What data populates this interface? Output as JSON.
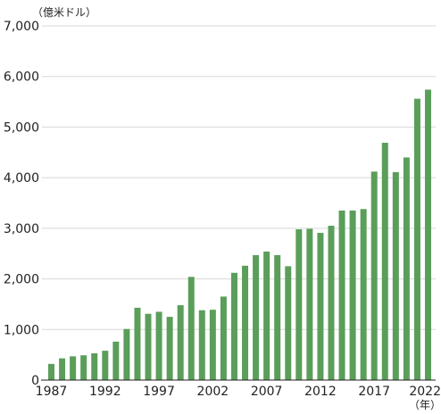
{
  "chart_data": {
    "type": "bar",
    "title": "",
    "xlabel": "",
    "ylabel": "",
    "y_unit": "（億米ドル）",
    "x_unit": "（年）",
    "ylim": [
      0,
      7000
    ],
    "yticks": [
      0,
      1000,
      2000,
      3000,
      4000,
      5000,
      6000,
      7000
    ],
    "ytick_labels": [
      "0",
      "1,000",
      "2,000",
      "3,000",
      "4,000",
      "5,000",
      "6,000",
      "7,000"
    ],
    "xtick_labels": [
      "1987",
      "1992",
      "1997",
      "2002",
      "2007",
      "2012",
      "2017",
      "2022"
    ],
    "grid": true,
    "bar_color": "#5a9e5a",
    "categories": [
      "1987",
      "1988",
      "1989",
      "1990",
      "1991",
      "1992",
      "1993",
      "1994",
      "1995",
      "1996",
      "1997",
      "1998",
      "1999",
      "2000",
      "2001",
      "2002",
      "2003",
      "2004",
      "2005",
      "2006",
      "2007",
      "2008",
      "2009",
      "2010",
      "2011",
      "2012",
      "2013",
      "2014",
      "2015",
      "2016",
      "2017",
      "2018",
      "2019",
      "2020",
      "2021",
      "2022"
    ],
    "values": [
      320,
      430,
      470,
      490,
      530,
      580,
      760,
      1010,
      1430,
      1310,
      1350,
      1250,
      1480,
      2040,
      1380,
      1390,
      1650,
      2120,
      2260,
      2470,
      2540,
      2470,
      2250,
      2980,
      2990,
      2910,
      3050,
      3350,
      3350,
      3380,
      4120,
      4690,
      4110,
      4400,
      5560,
      5740
    ]
  }
}
